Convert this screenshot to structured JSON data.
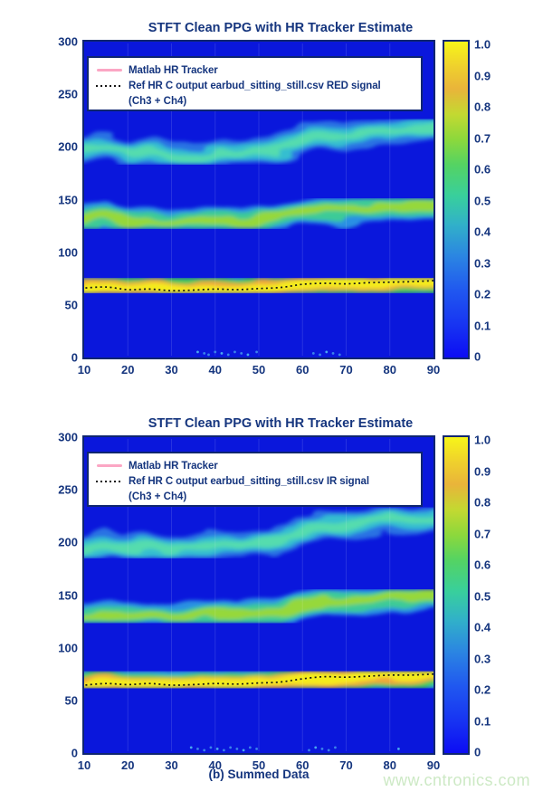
{
  "page": {
    "watermark": "www.cntronics.com",
    "background": "#ffffff",
    "watermark_color": "#cde9c5"
  },
  "style_colors": {
    "plot_background_blue": "#0a17dc",
    "axis_text_navy": "#15357e",
    "frame_border_navy": "#0f2670",
    "tracker_pink": "#fba6c4",
    "ref_line_black": "#161616",
    "colorbar_bottom": "#0c0cf4",
    "colorbar_top": "#f7f519"
  },
  "chart_data": [
    {
      "type": "heatmap",
      "title": "STFT Clean PPG with HR Tracker Estimate",
      "xlabel": "",
      "xlim": [
        10,
        90
      ],
      "ylim": [
        0,
        300
      ],
      "x_ticks": [
        10,
        20,
        30,
        40,
        50,
        60,
        70,
        80,
        90
      ],
      "y_ticks": [
        300,
        250,
        200,
        150,
        100,
        50,
        0
      ],
      "colorbar_ticks": [
        "1.0",
        "0.9",
        "0.8",
        "0.7",
        "0.6",
        "0.5",
        "0.4",
        "0.3",
        "0.2",
        "0.1",
        "0"
      ],
      "colorbar_range": [
        0,
        1
      ],
      "x": [
        10,
        15,
        20,
        25,
        30,
        35,
        40,
        45,
        50,
        55,
        60,
        65,
        70,
        75,
        80,
        85,
        90
      ],
      "hr_tracker_bpm": [
        66,
        67,
        64.5,
        65,
        63.5,
        64,
        65,
        64.5,
        65.5,
        66.5,
        69.5,
        70.5,
        70,
        71,
        71.5,
        72,
        73
      ],
      "bands": [
        {
          "name": "fundamental",
          "harmonic": 1,
          "peak_intensity": 1.0
        },
        {
          "name": "second-harmonic",
          "harmonic": 2,
          "peak_intensity": 0.55
        },
        {
          "name": "third-harmonic",
          "harmonic": 3,
          "peak_intensity": 0.35
        }
      ],
      "noise_dots_x": [
        36,
        37.5,
        38.5,
        40,
        41.5,
        43,
        44.5,
        46,
        47.5,
        49.5,
        62.5,
        64,
        65.5,
        67,
        68.5
      ],
      "legend": [
        {
          "label": "Matlab HR Tracker",
          "style": "solid",
          "color": "#fba6c4"
        },
        {
          "label": "Ref HR C output earbud_sitting_still.csv RED signal",
          "label2": "(Ch3 + Ch4)",
          "style": "dotted",
          "color": "#161616"
        }
      ]
    },
    {
      "type": "heatmap",
      "title": "STFT Clean PPG with HR Tracker Estimate",
      "xlabel": "(b) Summed Data",
      "xlim": [
        10,
        90
      ],
      "ylim": [
        0,
        300
      ],
      "x_ticks": [
        10,
        20,
        30,
        40,
        50,
        60,
        70,
        80,
        90
      ],
      "y_ticks": [
        300,
        250,
        200,
        150,
        100,
        50,
        0
      ],
      "colorbar_ticks": [
        "1.0",
        "0.9",
        "0.8",
        "0.7",
        "0.6",
        "0.5",
        "0.4",
        "0.3",
        "0.2",
        "0.1",
        "0"
      ],
      "colorbar_range": [
        0,
        1
      ],
      "x": [
        10,
        15,
        20,
        25,
        30,
        35,
        40,
        45,
        50,
        55,
        60,
        65,
        70,
        75,
        80,
        85,
        90
      ],
      "hr_tracker_bpm": [
        64.5,
        66,
        65,
        66,
        64.5,
        65,
        66,
        65.5,
        66.5,
        67.5,
        70.5,
        72.5,
        72,
        73,
        74,
        74,
        75
      ],
      "bands": [
        {
          "name": "fundamental",
          "harmonic": 1,
          "peak_intensity": 1.0
        },
        {
          "name": "second-harmonic",
          "harmonic": 2,
          "peak_intensity": 0.55
        },
        {
          "name": "third-harmonic",
          "harmonic": 3,
          "peak_intensity": 0.35
        }
      ],
      "noise_dots_x": [
        34.5,
        36,
        37.5,
        39,
        40.5,
        42,
        43.5,
        45,
        46.5,
        48,
        49.5,
        61.5,
        63,
        64.5,
        66,
        67.5,
        82
      ],
      "legend": [
        {
          "label": "Matlab HR Tracker",
          "style": "solid",
          "color": "#fba6c4"
        },
        {
          "label": "Ref HR C output earbud_sitting_still.csv IR signal",
          "label2": "(Ch3 + Ch4)",
          "style": "dotted",
          "color": "#161616"
        }
      ]
    }
  ]
}
